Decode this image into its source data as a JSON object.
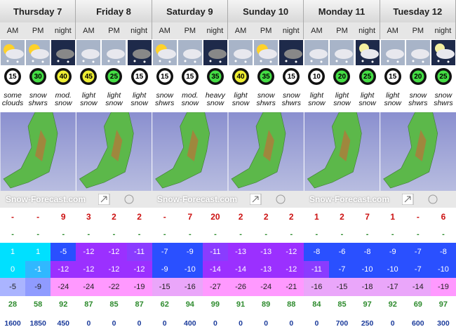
{
  "map_credit": "Snow-Forecast.com",
  "days": [
    {
      "name": "Thursday 7",
      "periods": [
        {
          "label": "AM",
          "wind": 15,
          "wind_color": "#ffffff",
          "weather": "some clouds",
          "snow": "-",
          "rain": "-",
          "temp_max": 1,
          "temp_min": 0,
          "temp_chill": -5,
          "humidity": 28,
          "freezing_level": 1600
        },
        {
          "label": "PM",
          "wind": 30,
          "wind_color": "#44dd44",
          "weather": "snow shwrs",
          "snow": "-",
          "rain": "-",
          "temp_max": 1,
          "temp_min": -1,
          "temp_chill": -9,
          "humidity": 58,
          "freezing_level": 1850
        },
        {
          "label": "night",
          "wind": 40,
          "wind_color": "#eeee33",
          "weather": "mod. snow",
          "snow": 9,
          "rain": "-",
          "temp_max": -5,
          "temp_min": -12,
          "temp_chill": -24,
          "humidity": 92,
          "freezing_level": 450
        }
      ]
    },
    {
      "name": "Friday 8",
      "periods": [
        {
          "label": "AM",
          "wind": 45,
          "wind_color": "#eeee33",
          "weather": "light snow",
          "snow": 3,
          "rain": "-",
          "temp_max": -12,
          "temp_min": -12,
          "temp_chill": -24,
          "humidity": 87,
          "freezing_level": 0
        },
        {
          "label": "PM",
          "wind": 25,
          "wind_color": "#44dd44",
          "weather": "light snow",
          "snow": 2,
          "rain": "-",
          "temp_max": -12,
          "temp_min": -12,
          "temp_chill": -22,
          "humidity": 85,
          "freezing_level": 0
        },
        {
          "label": "night",
          "wind": 15,
          "wind_color": "#ffffff",
          "weather": "light snow",
          "snow": 2,
          "rain": "-",
          "temp_max": -11,
          "temp_min": -12,
          "temp_chill": -19,
          "humidity": 87,
          "freezing_level": 0
        }
      ]
    },
    {
      "name": "Saturday 9",
      "periods": [
        {
          "label": "AM",
          "wind": 15,
          "wind_color": "#ffffff",
          "weather": "snow shwrs",
          "snow": "-",
          "rain": "-",
          "temp_max": -7,
          "temp_min": -9,
          "temp_chill": -15,
          "humidity": 62,
          "freezing_level": 0
        },
        {
          "label": "PM",
          "wind": 15,
          "wind_color": "#ffffff",
          "weather": "mod. snow",
          "snow": 7,
          "rain": "-",
          "temp_max": -9,
          "temp_min": -10,
          "temp_chill": -16,
          "humidity": 94,
          "freezing_level": 400
        },
        {
          "label": "night",
          "wind": 35,
          "wind_color": "#44dd44",
          "weather": "heavy snow",
          "snow": 20,
          "rain": "-",
          "temp_max": -11,
          "temp_min": -14,
          "temp_chill": -27,
          "humidity": 99,
          "freezing_level": 0
        }
      ]
    },
    {
      "name": "Sunday 10",
      "periods": [
        {
          "label": "AM",
          "wind": 40,
          "wind_color": "#eeee33",
          "weather": "light snow",
          "snow": 2,
          "rain": "-",
          "temp_max": -13,
          "temp_min": -14,
          "temp_chill": -26,
          "humidity": 91,
          "freezing_level": 0
        },
        {
          "label": "PM",
          "wind": 35,
          "wind_color": "#44dd44",
          "weather": "snow shwrs",
          "snow": 2,
          "rain": "-",
          "temp_max": -13,
          "temp_min": -13,
          "temp_chill": -24,
          "humidity": 89,
          "freezing_level": 0
        },
        {
          "label": "night",
          "wind": 15,
          "wind_color": "#ffffff",
          "weather": "snow shwrs",
          "snow": 2,
          "rain": "-",
          "temp_max": -12,
          "temp_min": -12,
          "temp_chill": -21,
          "humidity": 88,
          "freezing_level": 0
        }
      ]
    },
    {
      "name": "Monday 11",
      "periods": [
        {
          "label": "AM",
          "wind": 10,
          "wind_color": "#ffffff",
          "weather": "light snow",
          "snow": 1,
          "rain": "-",
          "temp_max": -8,
          "temp_min": -11,
          "temp_chill": -16,
          "humidity": 84,
          "freezing_level": 0
        },
        {
          "label": "PM",
          "wind": 20,
          "wind_color": "#44dd44",
          "weather": "light snow",
          "snow": 2,
          "rain": "-",
          "temp_max": -6,
          "temp_min": -7,
          "temp_chill": -15,
          "humidity": 85,
          "freezing_level": 700
        },
        {
          "label": "night",
          "wind": 25,
          "wind_color": "#44dd44",
          "weather": "light snow",
          "snow": 7,
          "rain": "-",
          "temp_max": -8,
          "temp_min": -10,
          "temp_chill": -18,
          "humidity": 97,
          "freezing_level": 250
        }
      ]
    },
    {
      "name": "Tuesday 12",
      "periods": [
        {
          "label": "AM",
          "wind": 15,
          "wind_color": "#ffffff",
          "weather": "light snow",
          "snow": 1,
          "rain": "-",
          "temp_max": -9,
          "temp_min": -10,
          "temp_chill": -17,
          "humidity": 92,
          "freezing_level": 0
        },
        {
          "label": "PM",
          "wind": 20,
          "wind_color": "#44dd44",
          "weather": "snow shwrs",
          "snow": "-",
          "rain": "-",
          "temp_max": -7,
          "temp_min": -7,
          "temp_chill": -14,
          "humidity": 69,
          "freezing_level": 600
        },
        {
          "label": "night",
          "wind": 25,
          "wind_color": "#44dd44",
          "weather": "snow shwrs",
          "snow": 6,
          "rain": "-",
          "temp_max": -8,
          "temp_min": -10,
          "temp_chill": -19,
          "humidity": 97,
          "freezing_level": 300
        }
      ]
    }
  ]
}
